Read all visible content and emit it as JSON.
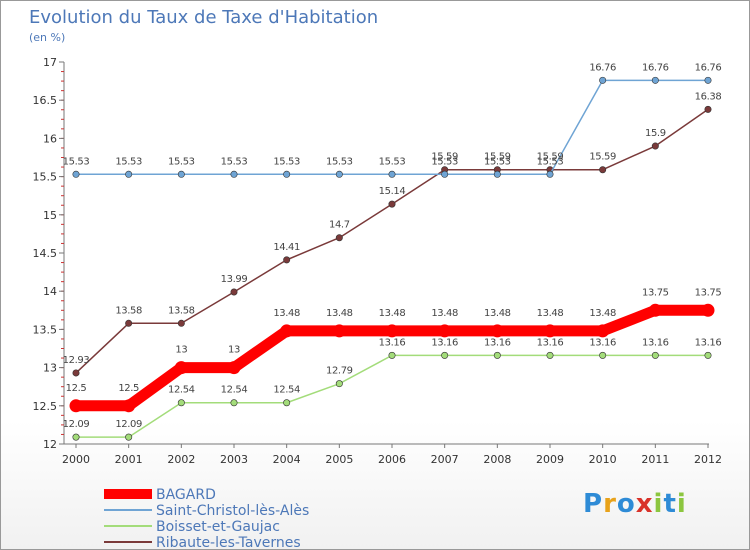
{
  "chart_data": {
    "type": "line",
    "title": "Evolution du Taux de Taxe d'Habitation",
    "subtitle": "(en %)",
    "x": [
      "2000",
      "2001",
      "2002",
      "2003",
      "2004",
      "2005",
      "2006",
      "2007",
      "2008",
      "2009",
      "2010",
      "2011",
      "2012"
    ],
    "ylim": [
      12,
      17
    ],
    "yticks": [
      "12",
      "12.5",
      "13",
      "13.5",
      "14",
      "14.5",
      "15",
      "15.5",
      "16",
      "16.5",
      "17"
    ],
    "grid": false,
    "series": [
      {
        "name": "BAGARD",
        "color": "#ff0000",
        "values": [
          12.5,
          12.5,
          13,
          13,
          13.48,
          13.48,
          13.48,
          13.48,
          13.48,
          13.48,
          13.48,
          13.75,
          13.75
        ],
        "labels": [
          "12.5",
          "12.5",
          "13",
          "13",
          "13.48",
          "13.48",
          "13.48",
          "13.48",
          "13.48",
          "13.48",
          "13.48",
          "13.75",
          "13.75"
        ]
      },
      {
        "name": "Saint-Christol-lès-Alès",
        "color": "#6fa4d4",
        "values": [
          15.53,
          15.53,
          15.53,
          15.53,
          15.53,
          15.53,
          15.53,
          15.53,
          15.53,
          15.53,
          16.76,
          16.76,
          16.76
        ],
        "labels": [
          "15.53",
          "15.53",
          "15.53",
          "15.53",
          "15.53",
          "15.53",
          "15.53",
          "15.53",
          "15.53",
          "15.53",
          "16.76",
          "16.76",
          "16.76"
        ]
      },
      {
        "name": "Boisset-et-Gaujac",
        "color": "#a3dc7a",
        "values": [
          12.09,
          12.09,
          12.54,
          12.54,
          12.54,
          12.79,
          13.16,
          13.16,
          13.16,
          13.16,
          13.16,
          13.16,
          13.16
        ],
        "labels": [
          "12.09",
          "12.09",
          "12.54",
          "12.54",
          "12.54",
          "12.79",
          "13.16",
          "13.16",
          "13.16",
          "13.16",
          "13.16",
          "13.16",
          "13.16"
        ]
      },
      {
        "name": "Ribaute-les-Tavernes",
        "color": "#7a3a3a",
        "values": [
          12.93,
          13.58,
          13.58,
          13.99,
          14.41,
          14.7,
          15.14,
          15.59,
          15.59,
          15.59,
          15.59,
          15.9,
          16.38
        ],
        "labels": [
          "12.93",
          "13.58",
          "13.58",
          "13.99",
          "14.41",
          "14.7",
          "15.14",
          "15.59",
          "15.59",
          "15.59",
          "15.59",
          "15.9",
          "16.38"
        ]
      }
    ]
  },
  "brand": {
    "name": "Proxiti",
    "letters": [
      "P",
      "r",
      "o",
      "x",
      "i",
      "t",
      "i"
    ],
    "colors": [
      "#2e8bd6",
      "#e8a21a",
      "#2e8bd6",
      "#d9322a",
      "#8cc63f",
      "#2e8bd6",
      "#8cc63f"
    ]
  }
}
